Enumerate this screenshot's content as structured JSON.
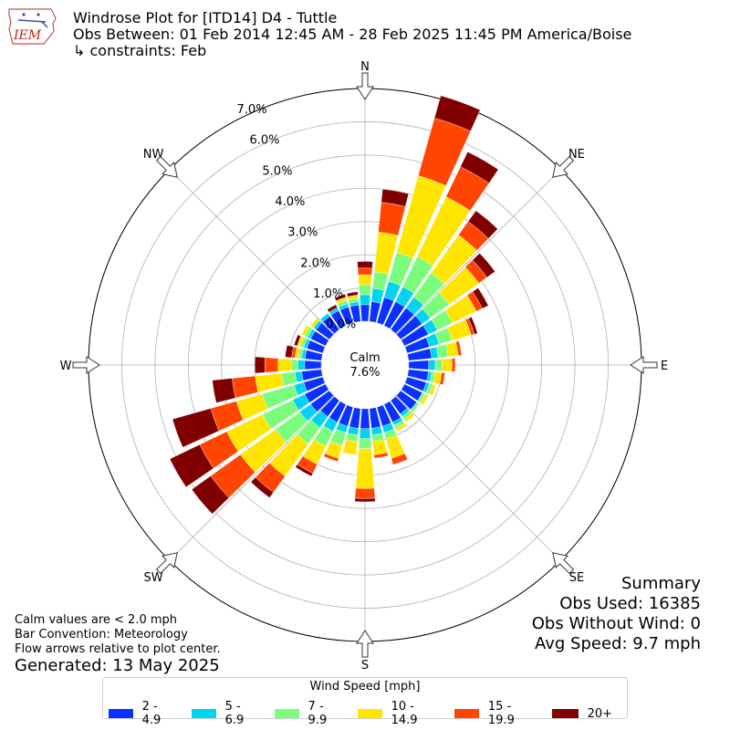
{
  "header": {
    "logo_text": "IEM",
    "title": "Windrose Plot for [ITD14] D4 - Tuttle",
    "subtitle": "Obs Between: 01 Feb 2014 12:45 AM - 28 Feb 2025 11:45 PM America/Boise",
    "constraints_arrow": "↳",
    "constraints": "constraints: Feb"
  },
  "notes": {
    "calm_note": "Calm values are < 2.0 mph",
    "bar_convention": "Bar Convention: Meteorology",
    "flow_arrows": "Flow arrows relative to plot center.",
    "generated": "Generated: 13 May 2025"
  },
  "summary": {
    "title": "Summary",
    "obs_used": "Obs Used: 16385",
    "obs_without_wind": "Obs Without Wind: 0",
    "avg_speed": "Avg Speed: 9.7 mph"
  },
  "legend": {
    "title": "Wind Speed [mph]",
    "items": [
      {
        "label": "2 - 4.9",
        "color": "#0a32ff"
      },
      {
        "label": "5 - 6.9",
        "color": "#00d4f0"
      },
      {
        "label": "7 - 9.9",
        "color": "#7cfc7c"
      },
      {
        "label": "10 - 14.9",
        "color": "#ffe500"
      },
      {
        "label": "15 - 19.9",
        "color": "#ff4500"
      },
      {
        "label": "20+",
        "color": "#800000"
      }
    ]
  },
  "chart_data": {
    "type": "windrose",
    "calm_label": "Calm",
    "calm_value": "7.6%",
    "radial_ticks": [
      "0.0%",
      "1.0%",
      "2.0%",
      "3.0%",
      "4.0%",
      "5.0%",
      "6.0%",
      "7.0%"
    ],
    "radial_values": [
      0,
      1,
      2,
      3,
      4,
      5,
      6,
      7
    ],
    "rmax": 7.0,
    "direction_labels": [
      "N",
      "NE",
      "E",
      "SE",
      "S",
      "SW",
      "W",
      "NW"
    ],
    "bins": [
      "2 - 4.9",
      "5 - 6.9",
      "7 - 9.9",
      "10 - 14.9",
      "15 - 19.9",
      "20+"
    ],
    "directions_deg": [
      0,
      10,
      20,
      30,
      40,
      50,
      60,
      70,
      80,
      90,
      100,
      110,
      120,
      130,
      140,
      150,
      160,
      170,
      180,
      190,
      200,
      210,
      220,
      230,
      240,
      250,
      260,
      270,
      280,
      290,
      300,
      310,
      320,
      330,
      340,
      350
    ],
    "cumulative_percent": [
      [
        0.5,
        0.8,
        1.1,
        1.4,
        1.6,
        1.8
      ],
      [
        0.6,
        1.0,
        1.5,
        2.7,
        3.6,
        4.0
      ],
      [
        0.8,
        1.3,
        2.2,
        4.6,
        6.4,
        7.1
      ],
      [
        0.8,
        1.3,
        2.3,
        4.3,
        5.3,
        5.8
      ],
      [
        0.8,
        1.2,
        2.1,
        3.5,
        4.0,
        4.4
      ],
      [
        0.8,
        1.1,
        1.8,
        2.9,
        3.2,
        3.5
      ],
      [
        0.8,
        1.1,
        1.6,
        2.4,
        2.6,
        2.8
      ],
      [
        0.7,
        1.0,
        1.4,
        2.0,
        2.1,
        2.2
      ],
      [
        0.7,
        0.9,
        1.2,
        1.5,
        1.6,
        1.6
      ],
      [
        0.6,
        0.8,
        1.0,
        1.3,
        1.4,
        1.4
      ],
      [
        0.6,
        0.7,
        0.8,
        1.0,
        1.1,
        1.1
      ],
      [
        0.6,
        0.7,
        0.8,
        0.9,
        0.9,
        0.9
      ],
      [
        0.6,
        0.6,
        0.7,
        0.8,
        0.8,
        0.8
      ],
      [
        0.6,
        0.6,
        0.7,
        0.7,
        0.7,
        0.7
      ],
      [
        0.5,
        0.6,
        0.7,
        0.8,
        0.8,
        0.8
      ],
      [
        0.6,
        0.7,
        0.8,
        0.9,
        0.9,
        0.9
      ],
      [
        0.6,
        0.8,
        1.0,
        1.6,
        1.8,
        1.8
      ],
      [
        0.6,
        0.8,
        1.0,
        1.4,
        1.5,
        1.5
      ],
      [
        0.6,
        0.9,
        1.2,
        2.4,
        2.7,
        2.8
      ],
      [
        0.6,
        0.8,
        1.0,
        1.4,
        1.4,
        1.4
      ],
      [
        0.6,
        0.8,
        1.2,
        1.6,
        1.7,
        1.7
      ],
      [
        0.6,
        0.9,
        1.4,
        2.0,
        2.3,
        2.4
      ],
      [
        0.6,
        1.0,
        1.6,
        2.8,
        3.4,
        3.6
      ],
      [
        0.7,
        1.1,
        2.0,
        3.3,
        4.4,
        5.1
      ],
      [
        0.7,
        1.1,
        2.1,
        3.3,
        4.2,
        5.2
      ],
      [
        0.6,
        0.9,
        1.9,
        2.7,
        3.5,
        4.7
      ],
      [
        0.6,
        0.8,
        1.2,
        2.0,
        2.7,
        3.3
      ],
      [
        0.5,
        0.7,
        0.9,
        1.3,
        1.7,
        2.0
      ],
      [
        0.5,
        0.6,
        0.7,
        0.8,
        0.9,
        1.1
      ],
      [
        0.5,
        0.6,
        0.7,
        0.8,
        0.8,
        0.9
      ],
      [
        0.5,
        0.6,
        0.7,
        0.8,
        0.8,
        0.8
      ],
      [
        0.5,
        0.6,
        0.6,
        0.7,
        0.7,
        0.7
      ],
      [
        0.5,
        0.6,
        0.6,
        0.6,
        0.6,
        0.6
      ],
      [
        0.5,
        0.6,
        0.6,
        0.6,
        0.6,
        0.7
      ],
      [
        0.5,
        0.6,
        0.7,
        0.8,
        0.8,
        0.9
      ],
      [
        0.5,
        0.6,
        0.7,
        0.8,
        0.8,
        0.9
      ]
    ]
  }
}
